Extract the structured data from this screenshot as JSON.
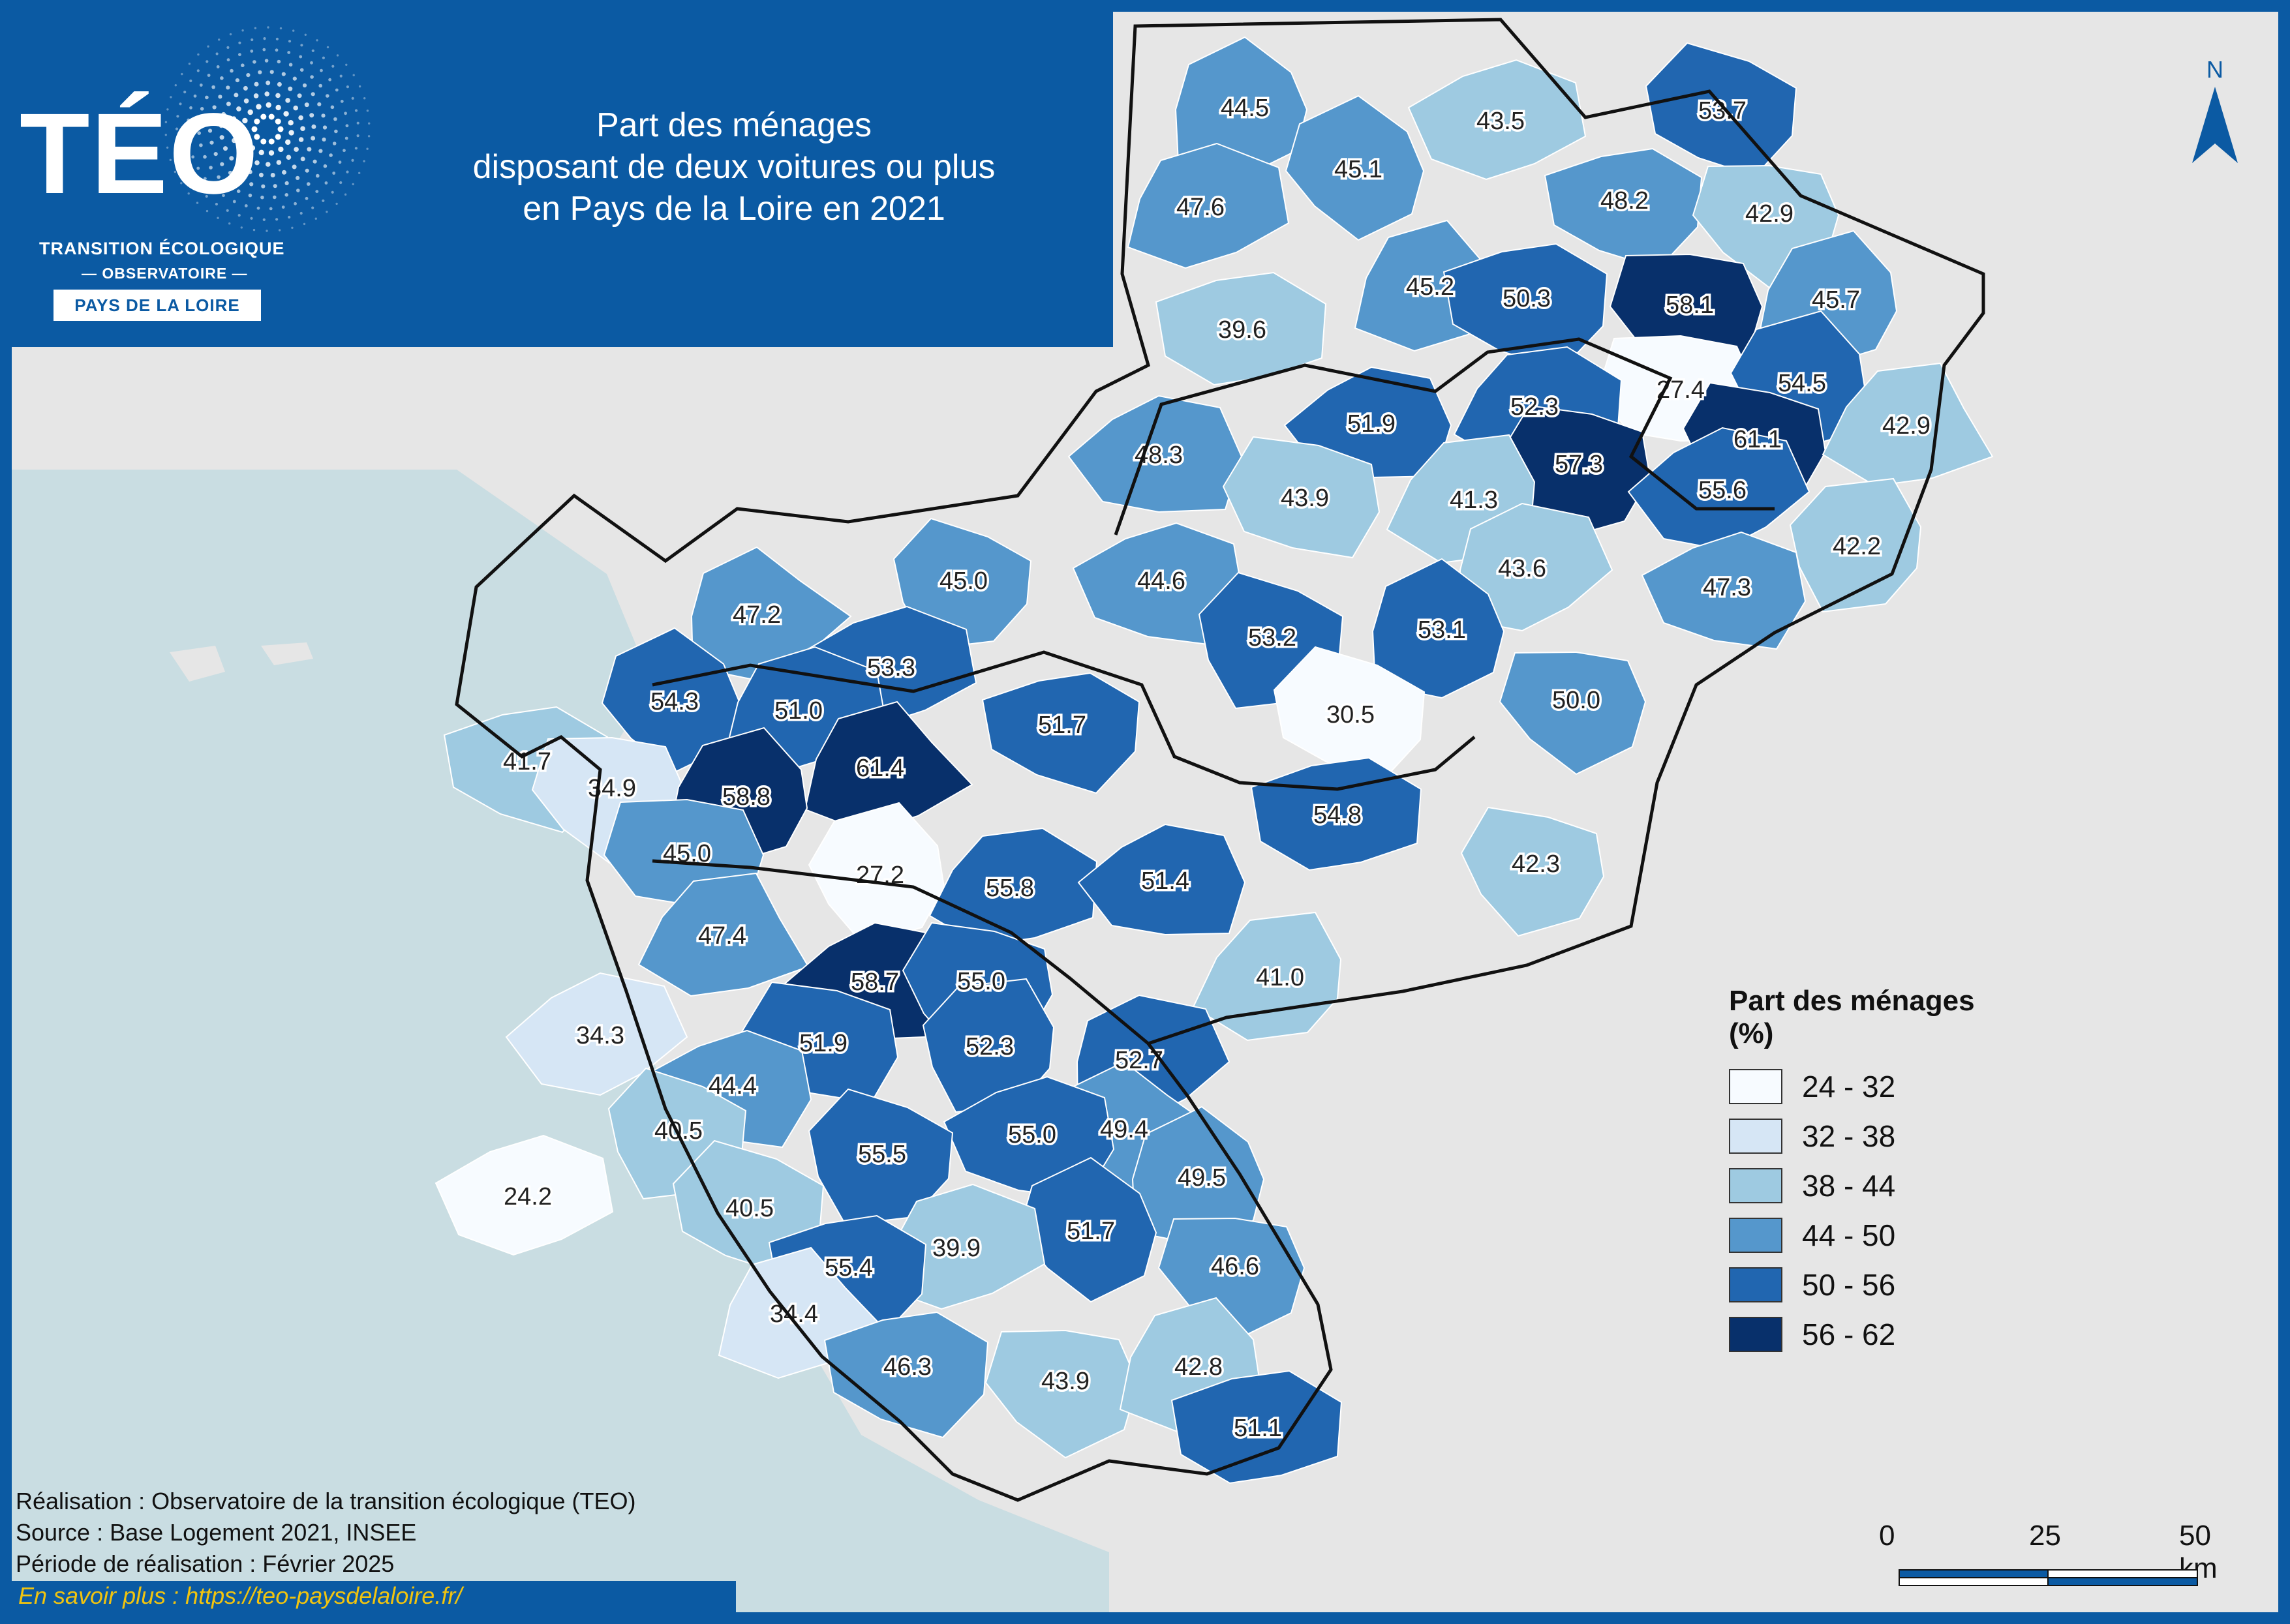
{
  "title": {
    "lines": [
      "Part des ménages",
      "disposant de deux voitures ou plus",
      "en Pays de la Loire en 2021"
    ]
  },
  "logo": {
    "word": "TÉO",
    "subtitle_line1": "TRANSITION ÉCOLOGIQUE",
    "subtitle_line2": "— OBSERVATOIRE —",
    "region": "PAYS DE LA LOIRE"
  },
  "north_arrow": {
    "label": "N"
  },
  "legend": {
    "title": "Part des ménages (%)",
    "classes": [
      {
        "label": "24 - 32",
        "color": "#f7fbff"
      },
      {
        "label": "32 - 38",
        "color": "#d6e6f5"
      },
      {
        "label": "38 - 44",
        "color": "#9ecae1"
      },
      {
        "label": "44 - 50",
        "color": "#5597cc"
      },
      {
        "label": "50 - 56",
        "color": "#2166b0"
      },
      {
        "label": "56 - 62",
        "color": "#08306b"
      }
    ]
  },
  "map_values": [
    "44.5",
    "43.5",
    "53.7",
    "45.1",
    "47.6",
    "48.2",
    "42.9",
    "45.2",
    "50.3",
    "58.1",
    "45.7",
    "39.6",
    "27.4",
    "54.5",
    "52.3",
    "51.9",
    "61.1",
    "42.9",
    "48.3",
    "57.3",
    "41.3",
    "55.6",
    "43.9",
    "42.2",
    "43.6",
    "47.3",
    "45.0",
    "47.2",
    "44.6",
    "53.2",
    "53.1",
    "53.3",
    "30.5",
    "54.3",
    "51.0",
    "51.7",
    "50.0",
    "61.4",
    "41.7",
    "34.9",
    "58.8",
    "54.8",
    "45.0",
    "27.2",
    "55.8",
    "51.4",
    "42.3",
    "47.4",
    "58.7",
    "55.0",
    "41.0",
    "34.3",
    "51.9",
    "52.3",
    "52.7",
    "44.4",
    "40.5",
    "49.4",
    "55.0",
    "55.5",
    "49.5",
    "24.2",
    "40.5",
    "51.7",
    "39.9",
    "55.4",
    "46.6",
    "34.4",
    "46.3",
    "43.9",
    "42.8",
    "51.1"
  ],
  "credits": {
    "realisation": "Réalisation : Observatoire de la transition écologique (TEO)",
    "source": "Source : Base Logement 2021, INSEE",
    "periode": "Période de réalisation : Février 2025",
    "more": "En savoir plus : https://teo-paysdelaloire.fr/"
  },
  "scale": {
    "labels": [
      "0",
      "25",
      "50 km"
    ]
  }
}
